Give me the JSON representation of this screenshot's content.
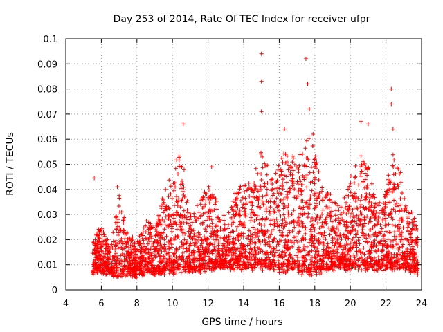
{
  "chart_data": {
    "type": "scatter",
    "title": "Day 253 of 2014, Rate Of TEC Index for receiver ufpr",
    "xlabel": "GPS time / hours",
    "ylabel": "ROTI / TECUs",
    "xlim": [
      4,
      24
    ],
    "ylim": [
      0,
      0.1
    ],
    "x_ticks": [
      "4",
      "6",
      "8",
      "10",
      "12",
      "14",
      "16",
      "18",
      "20",
      "22",
      "24"
    ],
    "y_ticks": [
      "0",
      "0.01",
      "0.02",
      "0.03",
      "0.04",
      "0.05",
      "0.06",
      "0.07",
      "0.08",
      "0.09",
      "0.1"
    ],
    "grid": true,
    "marker": "+",
    "color": "#ff0000",
    "notable_points": [
      {
        "x": 5.6,
        "y": 0.0445
      },
      {
        "x": 6.9,
        "y": 0.041
      },
      {
        "x": 10.6,
        "y": 0.066
      },
      {
        "x": 12.2,
        "y": 0.049
      },
      {
        "x": 15.0,
        "y": 0.094
      },
      {
        "x": 15.0,
        "y": 0.083
      },
      {
        "x": 15.0,
        "y": 0.071
      },
      {
        "x": 16.3,
        "y": 0.064
      },
      {
        "x": 17.5,
        "y": 0.092
      },
      {
        "x": 17.6,
        "y": 0.082
      },
      {
        "x": 17.7,
        "y": 0.072
      },
      {
        "x": 17.9,
        "y": 0.062
      },
      {
        "x": 20.6,
        "y": 0.067
      },
      {
        "x": 21.0,
        "y": 0.066
      },
      {
        "x": 22.3,
        "y": 0.08
      },
      {
        "x": 22.3,
        "y": 0.074
      },
      {
        "x": 22.4,
        "y": 0.064
      }
    ],
    "envelope": {
      "description": "typical upper level of dense point cloud by hour",
      "x": [
        5.5,
        6.0,
        6.5,
        7.0,
        7.5,
        8.0,
        8.5,
        9.0,
        9.5,
        10.0,
        10.5,
        11.0,
        11.5,
        12.0,
        12.5,
        13.0,
        13.5,
        14.0,
        14.5,
        15.0,
        15.5,
        16.0,
        16.5,
        17.0,
        17.5,
        18.0,
        18.5,
        19.0,
        19.5,
        20.0,
        20.5,
        21.0,
        21.5,
        22.0,
        22.5,
        23.0,
        23.5,
        23.8
      ],
      "upper": [
        0.018,
        0.026,
        0.016,
        0.038,
        0.022,
        0.018,
        0.028,
        0.024,
        0.038,
        0.046,
        0.056,
        0.03,
        0.034,
        0.044,
        0.036,
        0.028,
        0.04,
        0.044,
        0.04,
        0.06,
        0.044,
        0.052,
        0.058,
        0.05,
        0.064,
        0.058,
        0.04,
        0.036,
        0.034,
        0.046,
        0.054,
        0.05,
        0.034,
        0.04,
        0.06,
        0.038,
        0.032,
        0.022
      ],
      "lower": [
        0.007,
        0.008,
        0.007,
        0.006,
        0.007,
        0.006,
        0.007,
        0.007,
        0.007,
        0.007,
        0.008,
        0.008,
        0.008,
        0.009,
        0.009,
        0.009,
        0.009,
        0.009,
        0.009,
        0.009,
        0.009,
        0.008,
        0.008,
        0.008,
        0.007,
        0.007,
        0.008,
        0.008,
        0.009,
        0.009,
        0.009,
        0.009,
        0.009,
        0.009,
        0.009,
        0.009,
        0.008,
        0.007
      ]
    }
  }
}
